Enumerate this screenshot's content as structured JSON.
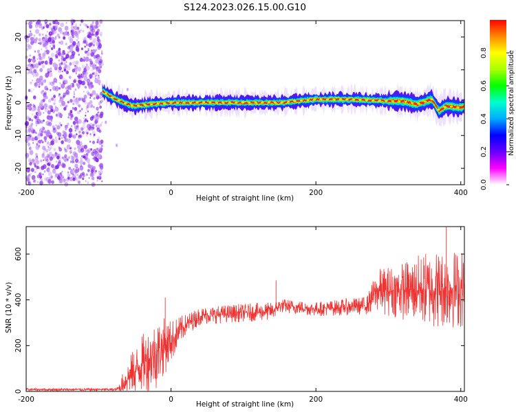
{
  "title": "S124.2023.026.15.00.G10",
  "chart_data": [
    {
      "type": "heatmap",
      "xlabel": "Height of straight line (km)",
      "ylabel": "Frequency (Hz)",
      "xlim": [
        -200,
        405
      ],
      "ylim": [
        -25,
        25
      ],
      "x_ticks": [
        -200,
        0,
        200,
        400
      ],
      "y_ticks": [
        -20,
        -10,
        0,
        10,
        20
      ],
      "colorbar": {
        "label": "Normalized spectral amplitude",
        "range": [
          0,
          1
        ],
        "ticks": [
          "0.0",
          "0.2",
          "0.4",
          "0.6",
          "0.8"
        ],
        "colors": [
          "#ffffff",
          "#ff00ff",
          "#6600ff",
          "#0000ff",
          "#00aaff",
          "#00ffcc",
          "#00ff00",
          "#aaff00",
          "#ffff00",
          "#ff8800",
          "#ff0000"
        ]
      },
      "noise_region_x": [
        -200,
        -95
      ],
      "ridge": {
        "x": [
          -95,
          -80,
          -60,
          -50,
          -30,
          0,
          50,
          100,
          150,
          200,
          250,
          300,
          320,
          340,
          360,
          370,
          380,
          400,
          405
        ],
        "freq": [
          3.5,
          1.5,
          -0.5,
          -1.0,
          -0.5,
          0,
          0,
          0,
          0,
          1.0,
          1.0,
          0.5,
          0.5,
          -0.5,
          1.0,
          -2.5,
          -1.0,
          -1.5,
          -1.0
        ]
      }
    },
    {
      "type": "line",
      "xlabel": "Height of straight line (km)",
      "ylabel": "SNR (10 * v/v)",
      "xlim": [
        -200,
        405
      ],
      "ylim": [
        0,
        720
      ],
      "x_ticks": [
        -200,
        0,
        200,
        400
      ],
      "y_ticks": [
        0,
        200,
        400,
        600
      ],
      "color": "#ee3333",
      "envelope": {
        "x": [
          -200,
          -75,
          -70,
          -60,
          -40,
          -20,
          0,
          20,
          40,
          80,
          140,
          150,
          200,
          270,
          285,
          320,
          360,
          405
        ],
        "mean": [
          8,
          8,
          20,
          60,
          120,
          170,
          220,
          290,
          330,
          340,
          350,
          375,
          360,
          375,
          440,
          440,
          450,
          450
        ],
        "amp": [
          4,
          4,
          20,
          50,
          80,
          100,
          60,
          30,
          25,
          25,
          25,
          20,
          20,
          25,
          60,
          80,
          110,
          110
        ]
      },
      "spikes": [
        {
          "x": -8,
          "y": 410
        },
        {
          "x": 145,
          "y": 485
        },
        {
          "x": 380,
          "y": 718
        }
      ]
    }
  ]
}
